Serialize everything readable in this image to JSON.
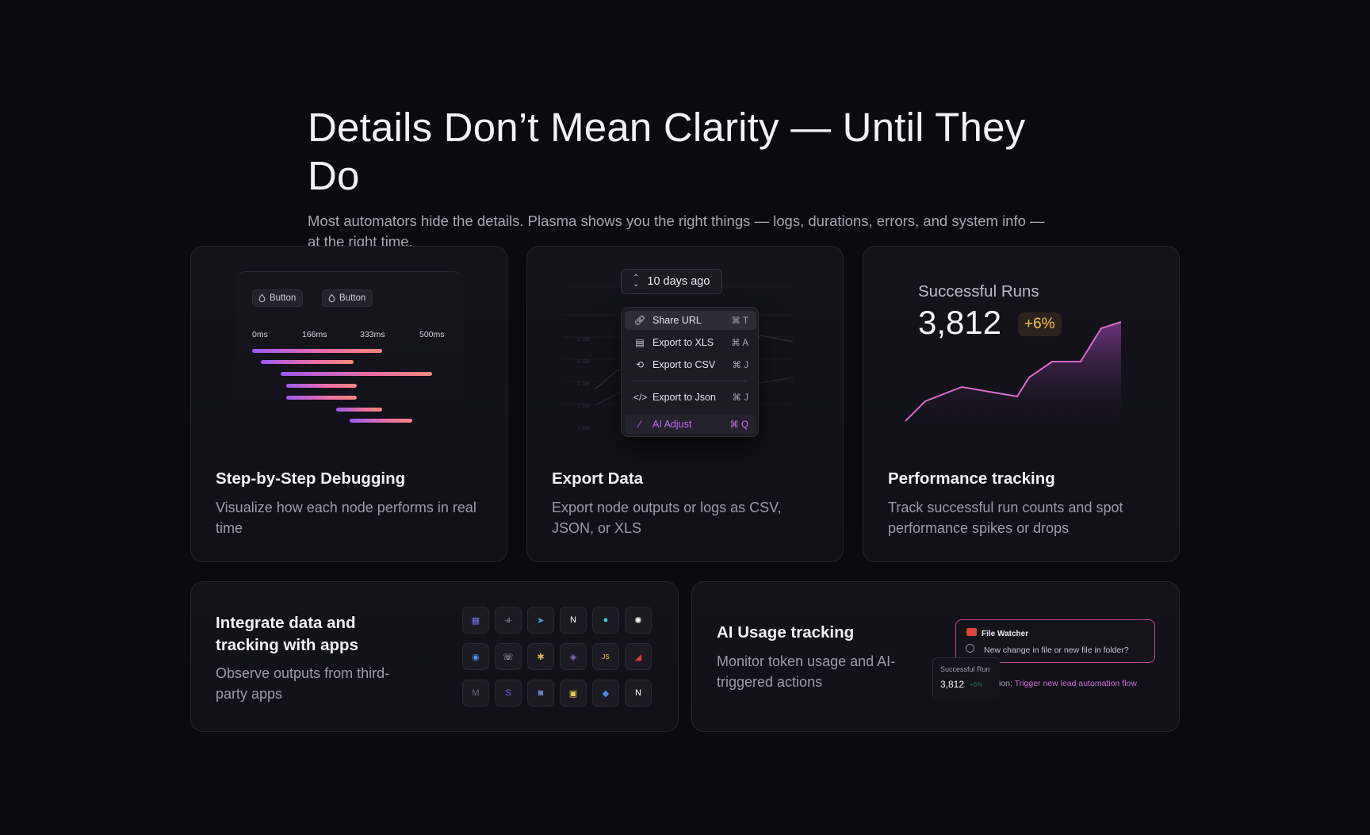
{
  "hero": {
    "title": "Details Don’t Mean Clarity — Until They Do",
    "subtitle": "Most automators hide the details. Plasma shows you the right things — logs, durations, errors, and system info — at the right time."
  },
  "debugging": {
    "chips": [
      "Button",
      "Button"
    ],
    "timeline_labels": [
      "0ms",
      "166ms",
      "333ms",
      "500ms"
    ],
    "title": "Step-by-Step Debugging",
    "description": "Visualize how each node performs in real time"
  },
  "export": {
    "range_label": "10 days ago",
    "menu": [
      {
        "label": "Share URL",
        "shortcut": "⌘ T",
        "icon": "link-icon"
      },
      {
        "label": "Export to XLS",
        "shortcut": "⌘ A",
        "icon": "document-icon"
      },
      {
        "label": "Export to CSV",
        "shortcut": "⌘ J",
        "icon": "shuffle-icon"
      },
      {
        "label": "Export to Json",
        "shortcut": "⌘ J",
        "icon": "code-icon"
      },
      {
        "label": "AI Adjust",
        "shortcut": "⌘ Q",
        "icon": "magic-wand-icon"
      }
    ],
    "chart_axis": [
      "5 GB",
      "4 GB",
      "3 GB",
      "2 GB",
      "1 GB",
      "0 B"
    ],
    "title": "Export Data",
    "description": "Export node outputs or logs as CSV, JSON, or XLS"
  },
  "performance": {
    "label": "Successful Runs",
    "value": "3,812",
    "change": "+6%",
    "accent": "#d46bc9",
    "title": "Performance tracking",
    "description": "Track successful run counts and spot performance spikes or drops"
  },
  "integrations": {
    "title": "Integrate data and tracking with apps",
    "description": "Observe outputs from third-party apps",
    "apps": [
      "calendar-app-icon",
      "make-app-icon",
      "telegram-app-icon",
      "notion-app-icon",
      "teal-dot-app-icon",
      "openai-app-icon",
      "globe-app-icon",
      "phone-app-icon",
      "slack-app-icon",
      "drop-app-icon",
      "javascript-app-icon",
      "rocket-app-icon",
      "gmail-app-icon",
      "stripe-app-icon",
      "discord-app-icon",
      "js-file-app-icon",
      "python-app-icon",
      "notion-app-icon"
    ]
  },
  "ai_usage": {
    "title": "AI Usage tracking",
    "description": "Monitor token usage and AI-triggered actions",
    "watcher_title": "File Watcher",
    "watcher_desc": "New change in file or new file in folder?",
    "mini_label": "Successful Run",
    "mini_value": "3,812",
    "mini_badge": "+6%",
    "trigger_prefix": "ion: ",
    "trigger_text": "Trigger new lead automation  flow"
  }
}
